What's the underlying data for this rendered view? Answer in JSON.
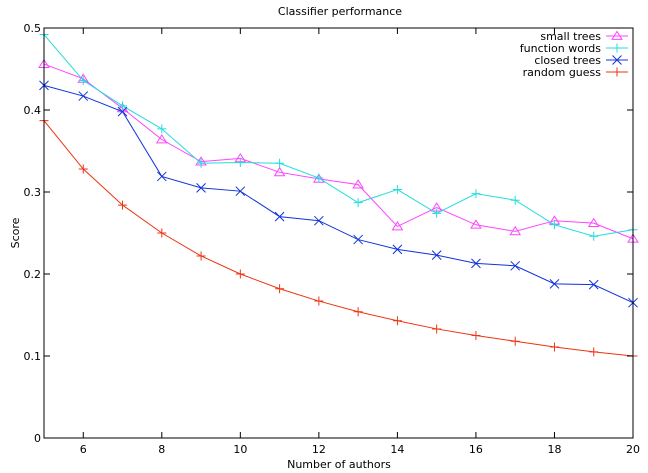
{
  "chart_data": {
    "type": "line",
    "title": "Classifier performance",
    "xlabel": "Number of authors",
    "ylabel": "Score",
    "xlim": [
      5,
      20
    ],
    "ylim": [
      0,
      0.5
    ],
    "xticks": [
      6,
      8,
      10,
      12,
      14,
      16,
      18,
      20
    ],
    "xtick_labels": [
      "6",
      "8",
      "10",
      "12",
      "14",
      "16",
      "18",
      "20"
    ],
    "yticks": [
      0,
      0.1,
      0.2,
      0.3,
      0.4,
      0.5
    ],
    "ytick_labels": [
      "0",
      "0.1",
      "0.2",
      "0.3",
      "0.4",
      "0.5"
    ],
    "grid": false,
    "legend_position": "top-right",
    "x": [
      5,
      6,
      7,
      8,
      9,
      10,
      11,
      12,
      13,
      14,
      15,
      16,
      17,
      18,
      19,
      20
    ],
    "series": [
      {
        "name": "small trees",
        "color": "#ff44ff",
        "marker": "triangle",
        "values": [
          0.456,
          0.438,
          0.402,
          0.364,
          0.337,
          0.341,
          0.324,
          0.316,
          0.309,
          0.258,
          0.281,
          0.26,
          0.252,
          0.265,
          0.262,
          0.243
        ]
      },
      {
        "name": "function words",
        "color": "#22dddd",
        "marker": "plus",
        "values": [
          0.492,
          0.436,
          0.405,
          0.377,
          0.335,
          0.336,
          0.335,
          0.317,
          0.287,
          0.303,
          0.274,
          0.298,
          0.29,
          0.26,
          0.246,
          0.254
        ]
      },
      {
        "name": "closed trees",
        "color": "#1133dd",
        "marker": "x",
        "values": [
          0.43,
          0.417,
          0.398,
          0.319,
          0.305,
          0.301,
          0.27,
          0.265,
          0.242,
          0.23,
          0.223,
          0.213,
          0.21,
          0.188,
          0.187,
          0.165
        ]
      },
      {
        "name": "random guess",
        "color": "#ee3311",
        "marker": "plus",
        "values": [
          0.387,
          0.328,
          0.284,
          0.25,
          0.222,
          0.2,
          0.182,
          0.167,
          0.154,
          0.143,
          0.133,
          0.125,
          0.118,
          0.111,
          0.105,
          0.1
        ]
      }
    ]
  }
}
